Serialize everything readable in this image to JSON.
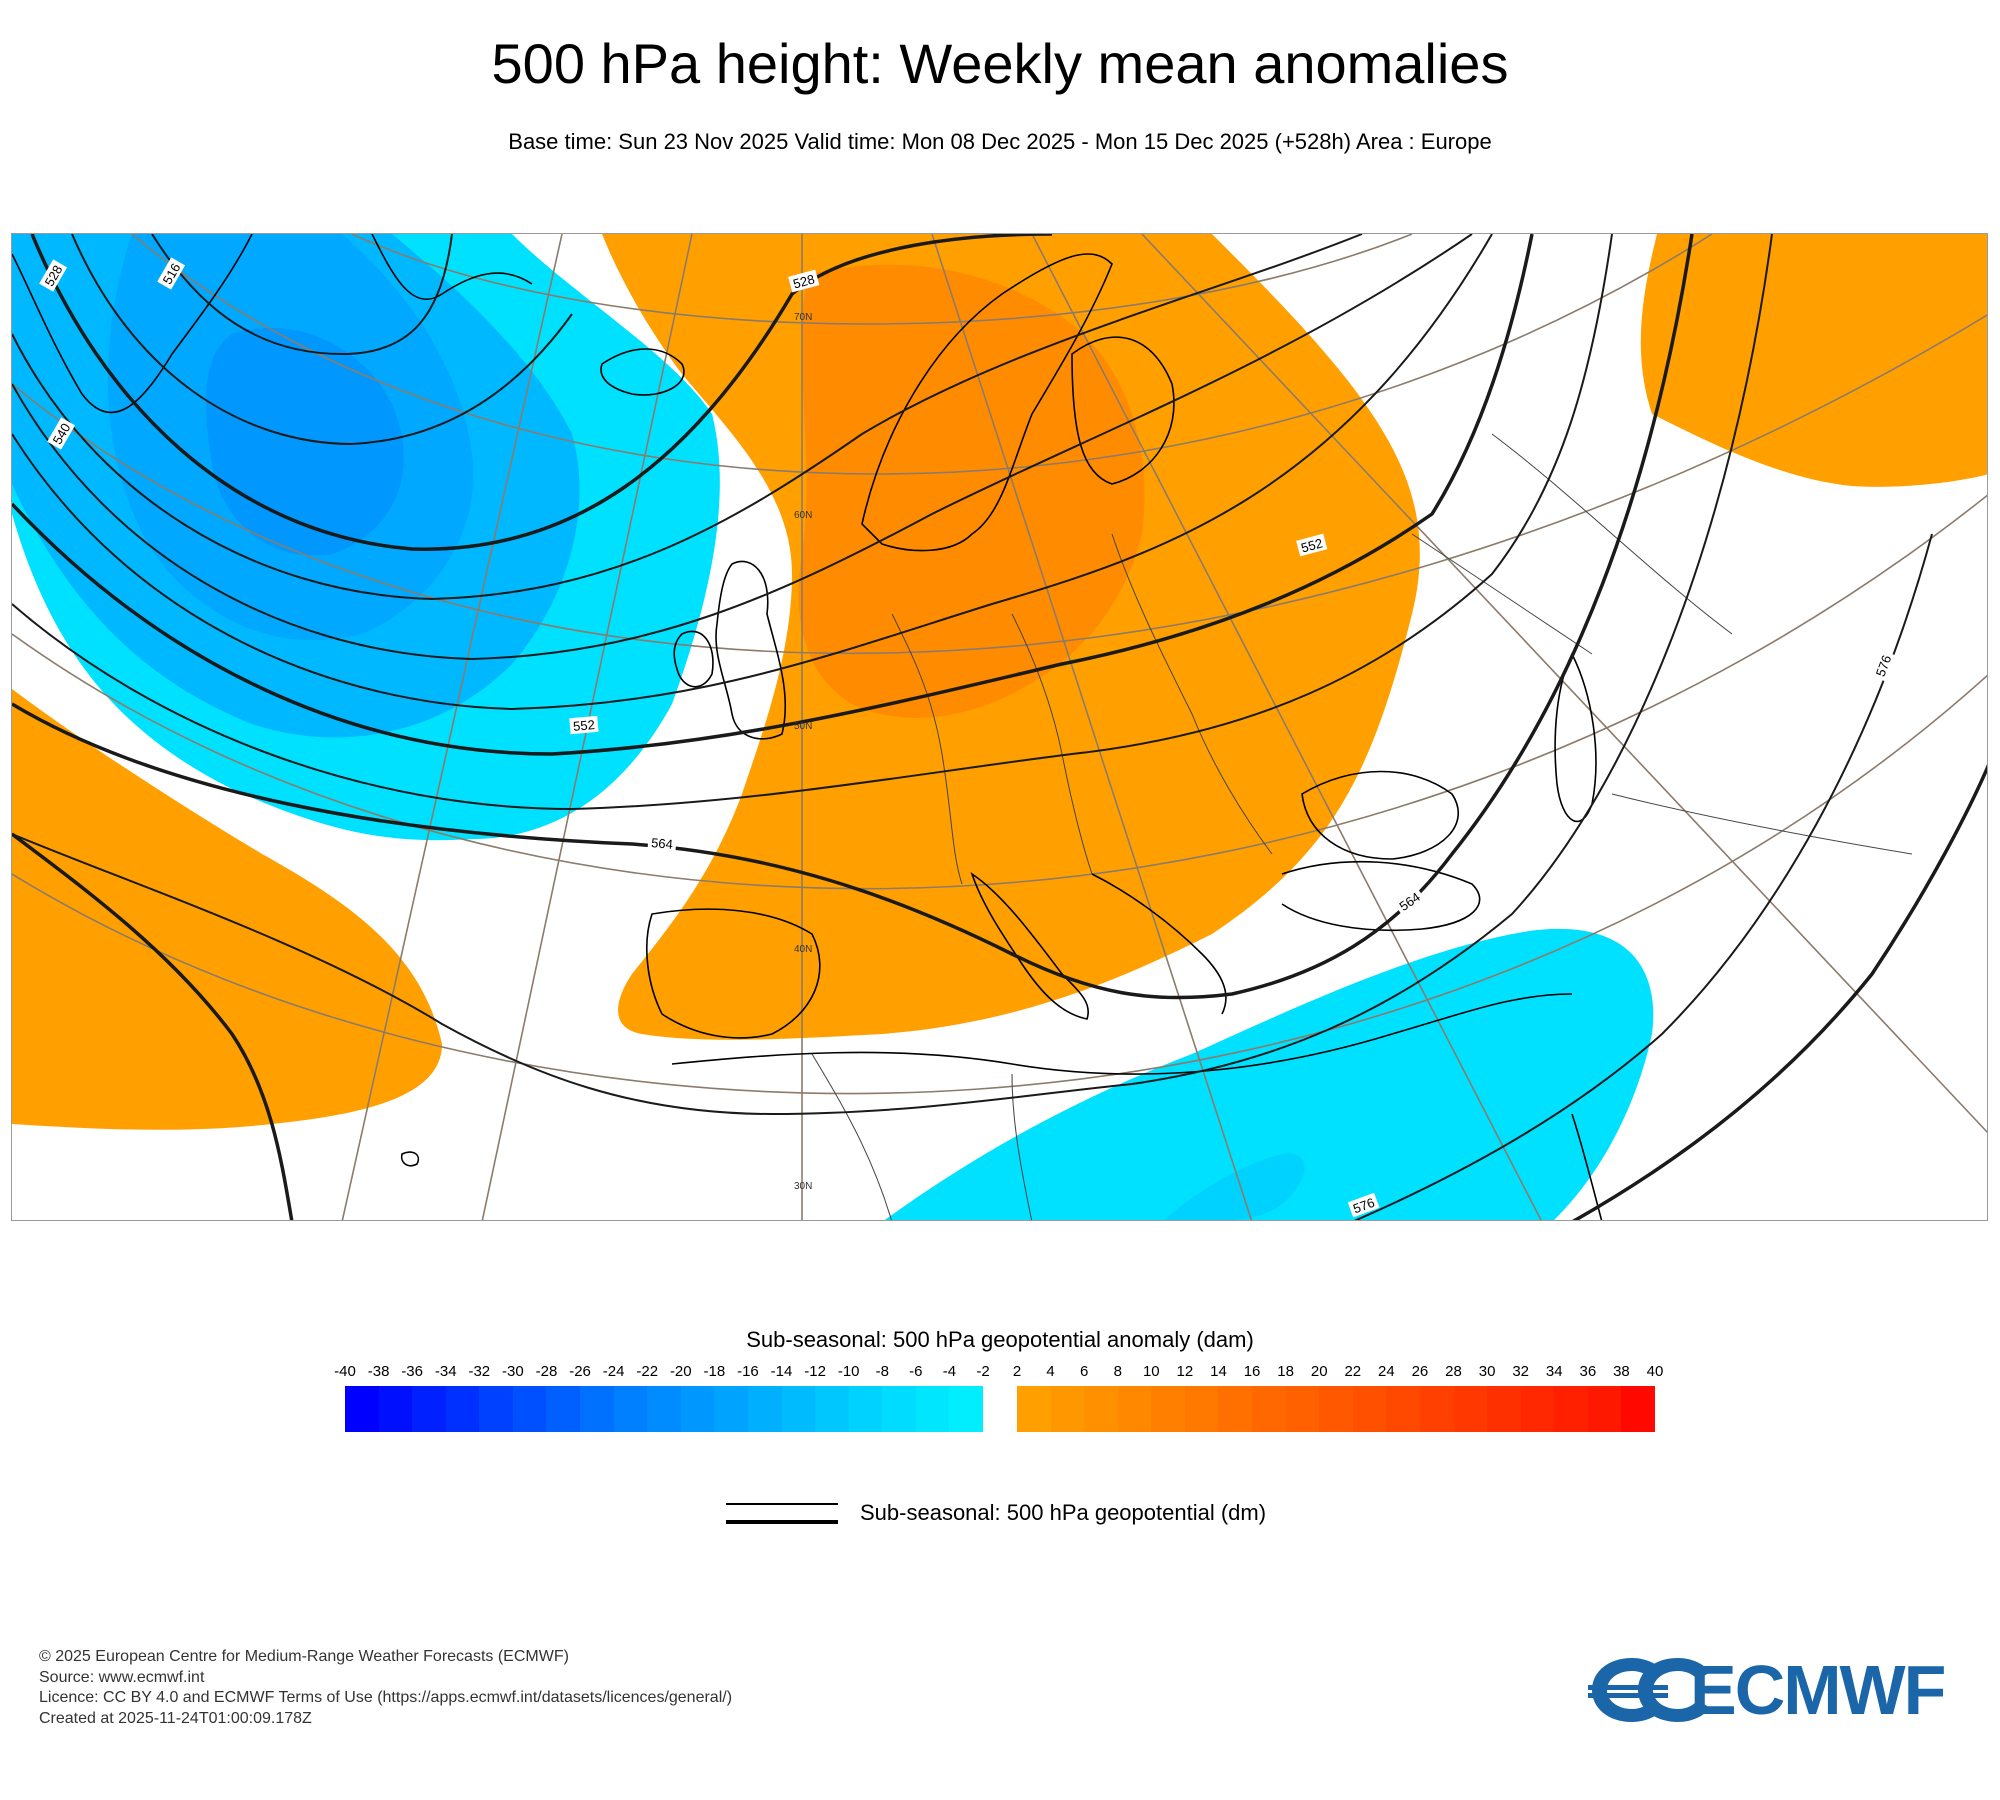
{
  "header": {
    "title": "500 hPa height: Weekly mean anomalies",
    "subtitle": "Base time: Sun 23 Nov 2025 Valid time: Mon 08 Dec 2025 - Mon 15 Dec 2025 (+528h) Area : Europe"
  },
  "map": {
    "contour_labels": [
      "528",
      "516",
      "540",
      "528",
      "552",
      "552",
      "564",
      "564",
      "576",
      "576"
    ],
    "lat_labels": [
      "70N",
      "60N",
      "50N",
      "40N",
      "30N"
    ],
    "colors": {
      "negative_light": "#00e0ff",
      "negative_mid": "#00b6ff",
      "negative_dark": "#0096ff",
      "positive_light": "#ffa000",
      "positive_mid": "#ff8c00",
      "coast": "#000000",
      "grid": "#8c7b6a"
    }
  },
  "colorbar": {
    "title": "Sub-seasonal: 500 hPa geopotential anomaly (dam)",
    "labels": [
      "-40",
      "-38",
      "-36",
      "-34",
      "-32",
      "-30",
      "-28",
      "-26",
      "-24",
      "-22",
      "-20",
      "-18",
      "-16",
      "-14",
      "-12",
      "-10",
      "-8",
      "-6",
      "-4",
      "-2",
      "2",
      "4",
      "6",
      "8",
      "10",
      "12",
      "14",
      "16",
      "18",
      "20",
      "22",
      "24",
      "26",
      "28",
      "30",
      "32",
      "34",
      "36",
      "38",
      "40"
    ],
    "negative_colors": [
      "#0000ff",
      "#0010ff",
      "#0020ff",
      "#0030ff",
      "#0040ff",
      "#0050ff",
      "#0060ff",
      "#0070ff",
      "#0080ff",
      "#008cff",
      "#0098ff",
      "#00a4ff",
      "#00b0ff",
      "#00bcff",
      "#00c8ff",
      "#00d2ff",
      "#00dcff",
      "#00e6ff",
      "#00eeff"
    ],
    "positive_colors": [
      "#ffa000",
      "#ff9800",
      "#ff9000",
      "#ff8800",
      "#ff8000",
      "#ff7800",
      "#ff7000",
      "#ff6800",
      "#ff6000",
      "#ff5800",
      "#ff5000",
      "#ff4800",
      "#ff4000",
      "#ff3800",
      "#ff3000",
      "#ff2800",
      "#ff2000",
      "#ff1800",
      "#ff0800"
    ]
  },
  "legend": {
    "label": "Sub-seasonal: 500 hPa geopotential (dm)"
  },
  "footer": {
    "lines": [
      "© 2025 European Centre for Medium-Range Weather Forecasts (ECMWF)",
      "Source: www.ecmwf.int",
      "Licence: CC BY 4.0 and ECMWF Terms of Use (https://apps.ecmwf.int/datasets/licences/general/)",
      "Created at 2025-11-24T01:00:09.178Z"
    ]
  },
  "logo": {
    "text": "ECMWF",
    "color": "#1a66a8"
  }
}
